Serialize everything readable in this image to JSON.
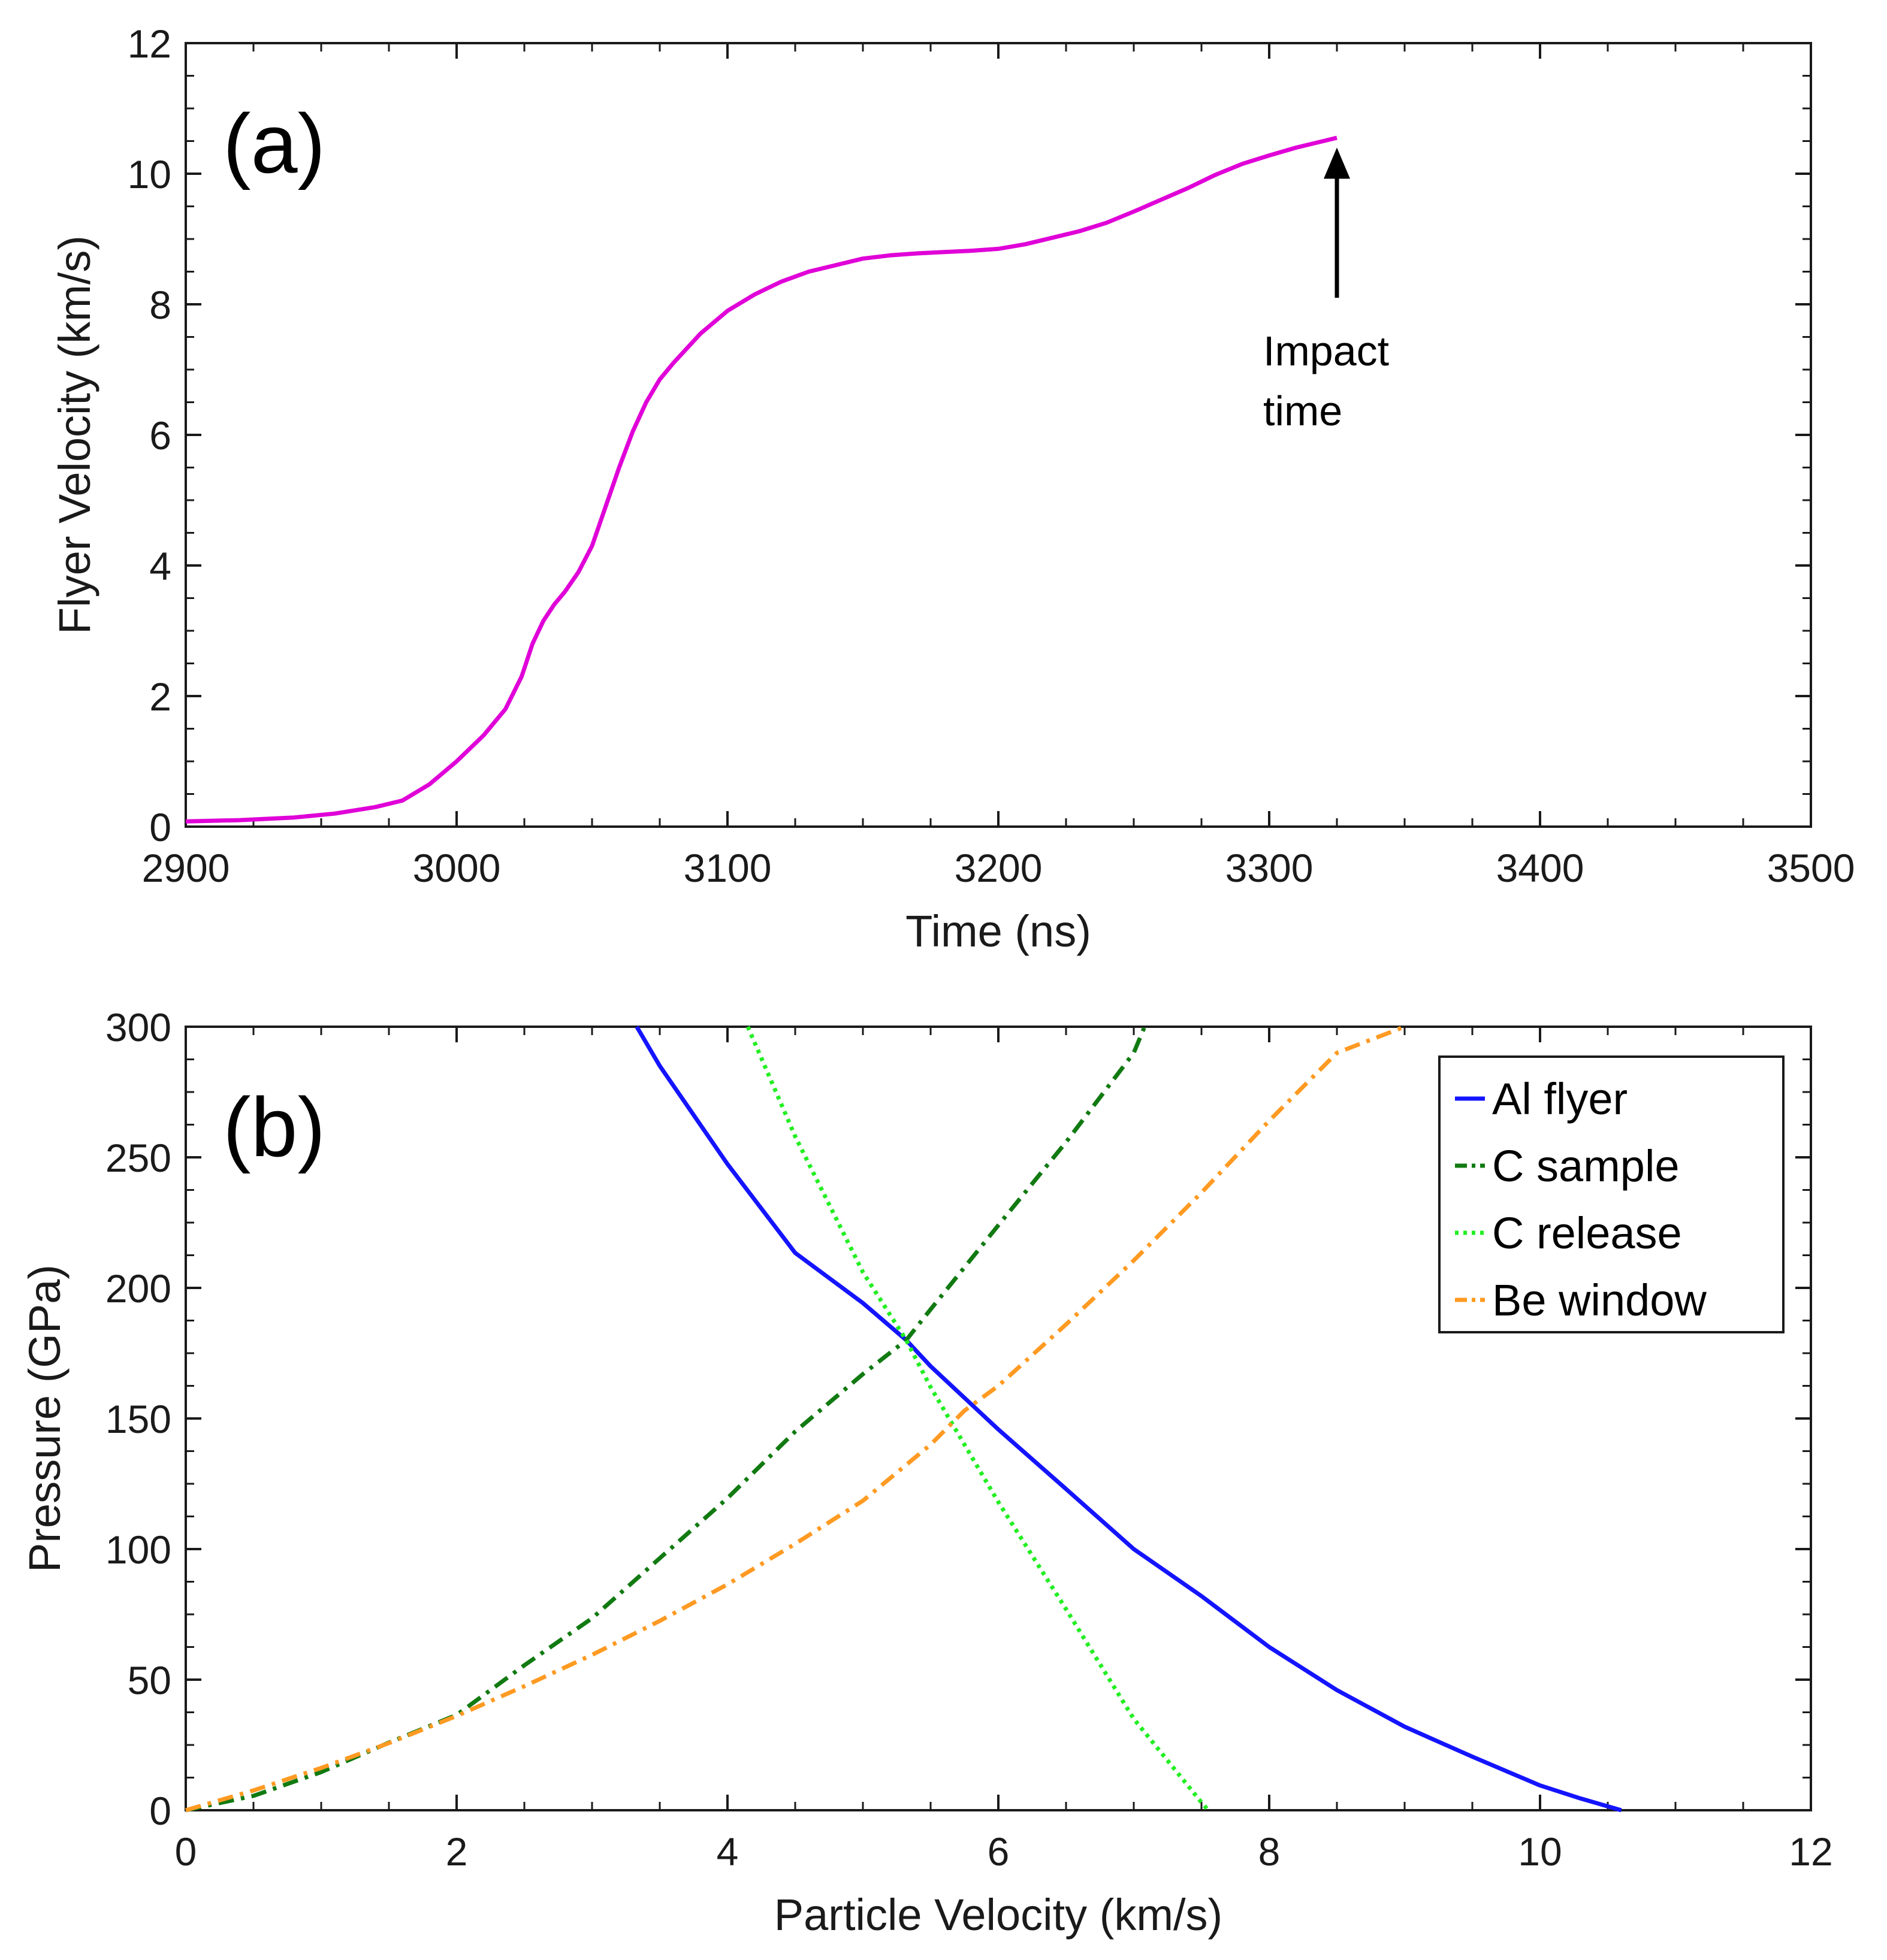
{
  "colors": {
    "flyer": "#e000d8",
    "al_flyer": "#1414ff",
    "c_sample": "#117a11",
    "c_release": "#22ee22",
    "be_window": "#ff9a22",
    "axis": "#1a1a1a"
  },
  "chart_data": [
    {
      "type": "line",
      "panel_label": "(a)",
      "xlabel": "Time (ns)",
      "ylabel": "Flyer Velocity (km/s)",
      "xlim": [
        2900,
        3500
      ],
      "ylim": [
        0,
        12
      ],
      "xticks": [
        "2900",
        "3000",
        "3100",
        "3200",
        "3300",
        "3400",
        "3500"
      ],
      "yticks": [
        "0",
        "2",
        "4",
        "6",
        "8",
        "10",
        "12"
      ],
      "grid": false,
      "series": [
        {
          "color": "#e000d8",
          "x": [
            2900,
            2920,
            2940,
            2955,
            2970,
            2980,
            2990,
            3000,
            3010,
            3018,
            3024,
            3028,
            3032,
            3036,
            3040,
            3045,
            3050,
            3055,
            3060,
            3065,
            3070,
            3075,
            3080,
            3090,
            3100,
            3110,
            3120,
            3130,
            3140,
            3150,
            3160,
            3170,
            3180,
            3190,
            3200,
            3210,
            3220,
            3230,
            3240,
            3250,
            3260,
            3270,
            3280,
            3290,
            3300,
            3310,
            3320,
            3325
          ],
          "y": [
            0.08,
            0.1,
            0.14,
            0.2,
            0.3,
            0.4,
            0.65,
            1.0,
            1.4,
            1.8,
            2.3,
            2.8,
            3.15,
            3.4,
            3.6,
            3.9,
            4.3,
            4.9,
            5.5,
            6.05,
            6.5,
            6.85,
            7.1,
            7.55,
            7.9,
            8.15,
            8.35,
            8.5,
            8.6,
            8.7,
            8.75,
            8.78,
            8.8,
            8.82,
            8.85,
            8.92,
            9.02,
            9.12,
            9.25,
            9.42,
            9.6,
            9.78,
            9.98,
            10.15,
            10.28,
            10.4,
            10.5,
            10.55
          ]
        }
      ],
      "annotations": [
        {
          "text_lines": [
            "Impact",
            "time"
          ],
          "arrow_x": 3325,
          "arrow_y_from": 8.1,
          "arrow_y_to": 10.4
        }
      ]
    },
    {
      "type": "line",
      "panel_label": "(b)",
      "xlabel": "Particle Velocity (km/s)",
      "ylabel": "Pressure (GPa)",
      "xlim": [
        0,
        12
      ],
      "ylim": [
        0,
        300
      ],
      "xticks": [
        "0",
        "2",
        "4",
        "6",
        "8",
        "10",
        "12"
      ],
      "yticks": [
        "0",
        "50",
        "100",
        "150",
        "200",
        "250",
        "300"
      ],
      "grid": false,
      "legend_position": "top-right",
      "series": [
        {
          "name": "Al flyer",
          "color": "#1414ff",
          "dash": "solid",
          "x": [
            3.33,
            3.5,
            4.0,
            4.5,
            5.0,
            5.32,
            5.5,
            6.0,
            6.5,
            7.0,
            7.5,
            8.0,
            8.5,
            9.0,
            9.5,
            10.0,
            10.3,
            10.6
          ],
          "y": [
            300,
            285,
            247.4,
            213.4,
            194.2,
            180,
            170,
            145.8,
            123,
            100,
            82,
            62.5,
            46,
            32,
            20.5,
            9.5,
            4.5,
            0
          ]
        },
        {
          "name": "C sample",
          "color": "#117a11",
          "dash": "dashdot",
          "x": [
            0,
            0.5,
            1.0,
            1.5,
            2.0,
            2.5,
            3.0,
            3.5,
            4.0,
            4.5,
            5.0,
            5.32,
            5.5,
            6.0,
            6.5,
            7.0,
            7.08
          ],
          "y": [
            0,
            5.5,
            14.6,
            25.9,
            36.5,
            55.5,
            73.5,
            96.5,
            119.5,
            145,
            167,
            180,
            191.8,
            224,
            255.8,
            290,
            300
          ]
        },
        {
          "name": "C release",
          "color": "#22ee22",
          "dash": "dotted",
          "x": [
            4.15,
            4.5,
            5.0,
            5.32,
            5.5,
            6.0,
            6.5,
            7.0,
            7.5,
            7.55
          ],
          "y": [
            300,
            258,
            206,
            180,
            162,
            118,
            77,
            35,
            3,
            0
          ]
        },
        {
          "name": "Be window",
          "color": "#ff9a22",
          "dash": "dashdot",
          "x": [
            0,
            0.5,
            1.0,
            1.5,
            2.0,
            2.5,
            3.0,
            3.5,
            4.0,
            4.5,
            5.0,
            5.5,
            5.75,
            6.0,
            6.5,
            7.0,
            7.5,
            8.0,
            8.5,
            9.0
          ],
          "y": [
            0,
            7.6,
            16.2,
            25.7,
            36.1,
            47.5,
            59.5,
            72.5,
            86.5,
            102,
            118.5,
            140,
            153,
            162.5,
            186,
            210.5,
            236.5,
            264,
            290,
            300
          ]
        }
      ]
    }
  ]
}
